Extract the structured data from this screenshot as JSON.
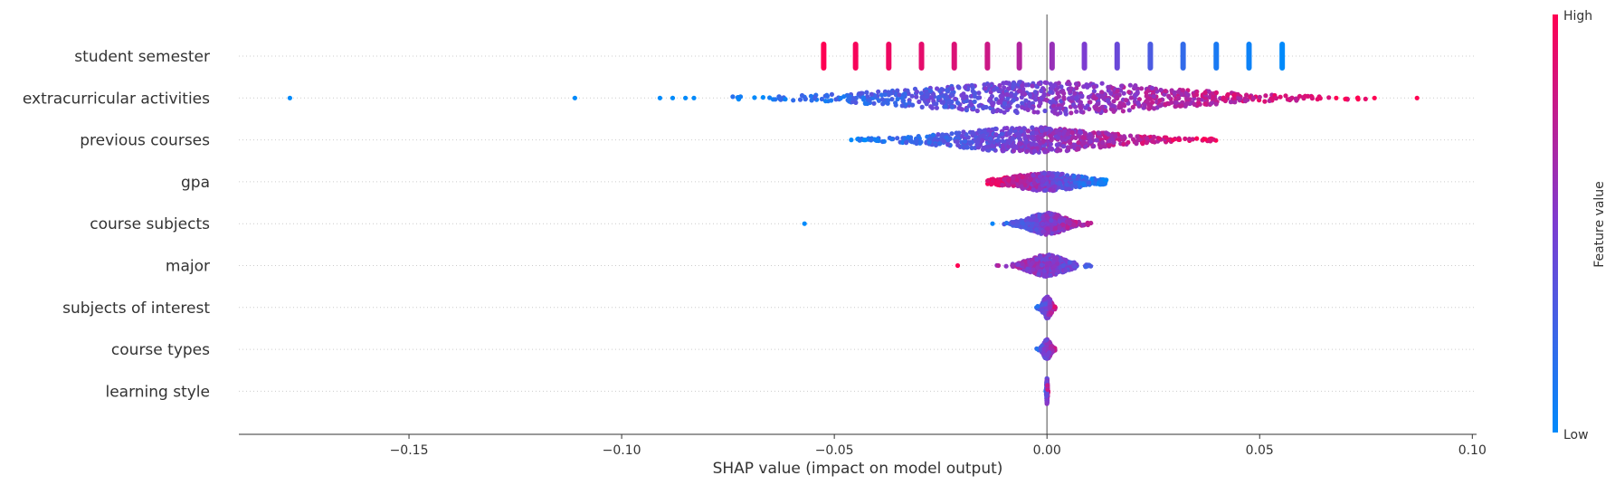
{
  "chart_data": {
    "type": "scatter",
    "subtype": "shap-beeswarm",
    "title": "",
    "xlabel": "SHAP value (impact on model output)",
    "xlim": [
      -0.19,
      0.101
    ],
    "x_ticks": [
      -0.15,
      -0.1,
      -0.05,
      0.0,
      0.05,
      0.1
    ],
    "x_tick_labels": [
      "−0.15",
      "−0.10",
      "−0.05",
      "0.00",
      "0.05",
      "0.10"
    ],
    "grid": "dotted horizontal row guides",
    "colorbar": {
      "label": "Feature value",
      "high_label": "High",
      "low_label": "Low",
      "high_color": "#ff0052",
      "mid_color": "#7d3cd1",
      "low_color": "#008afb"
    },
    "features": [
      {
        "name": "student semester",
        "style": "discrete",
        "values": [
          -0.0525,
          -0.045,
          -0.0372,
          -0.0295,
          -0.0218,
          -0.014,
          -0.0065,
          0.0012,
          0.0088,
          0.0165,
          0.0243,
          0.032,
          0.0398,
          0.0475,
          0.0553
        ],
        "colors": [
          1.0,
          0.97,
          0.94,
          0.9,
          0.86,
          0.8,
          0.7,
          0.6,
          0.5,
          0.42,
          0.3,
          0.2,
          0.1,
          0.05,
          0.0
        ]
      },
      {
        "name": "extracurricular activities",
        "style": "spread",
        "min": -0.075,
        "max": 0.075,
        "center": 0.0,
        "width": 0.03,
        "count": 900,
        "max_height": 17,
        "outliers": [
          [
            -0.178,
            0.0
          ],
          [
            -0.111,
            0.0
          ],
          [
            -0.091,
            0.0
          ],
          [
            -0.088,
            0.0
          ],
          [
            -0.085,
            0.0
          ],
          [
            -0.083,
            0.0
          ],
          [
            0.077,
            1.0
          ],
          [
            0.087,
            1.0
          ],
          [
            0.073,
            1.0
          ],
          [
            0.068,
            1.0
          ]
        ]
      },
      {
        "name": "previous courses",
        "style": "spread",
        "min": -0.045,
        "max": 0.04,
        "center": -0.004,
        "width": 0.017,
        "count": 700,
        "max_height": 13,
        "outliers": [
          [
            -0.046,
            0.0
          ],
          [
            -0.043,
            0.0
          ]
        ]
      },
      {
        "name": "gpa",
        "style": "spread",
        "min": -0.014,
        "max": 0.014,
        "center": 0.0,
        "width": 0.008,
        "count": 500,
        "max_height": 9,
        "reverse": true,
        "outliers": []
      },
      {
        "name": "course subjects",
        "style": "spread",
        "min": -0.013,
        "max": 0.016,
        "center": 0.0,
        "width": 0.004,
        "count": 450,
        "max_height": 11,
        "outliers": [
          [
            -0.057,
            0.0
          ]
        ]
      },
      {
        "name": "major",
        "style": "spread",
        "min": -0.015,
        "max": 0.028,
        "center": 0.0,
        "width": 0.004,
        "count": 400,
        "max_height": 11,
        "reverse": true,
        "outliers": [
          [
            -0.021,
            1.0
          ]
        ]
      },
      {
        "name": "subjects of interest",
        "style": "spread",
        "min": -0.003,
        "max": 0.002,
        "center": 0.0,
        "width": 0.0009,
        "count": 200,
        "max_height": 11,
        "outliers": []
      },
      {
        "name": "course types",
        "style": "spread",
        "min": -0.003,
        "max": 0.003,
        "center": 0.0,
        "width": 0.0008,
        "count": 200,
        "max_height": 10,
        "outliers": []
      },
      {
        "name": "learning style",
        "style": "spread",
        "min": -0.0003,
        "max": 0.0003,
        "center": 0.0,
        "width": 0.0001,
        "count": 120,
        "max_height": 14,
        "outliers": []
      }
    ]
  }
}
